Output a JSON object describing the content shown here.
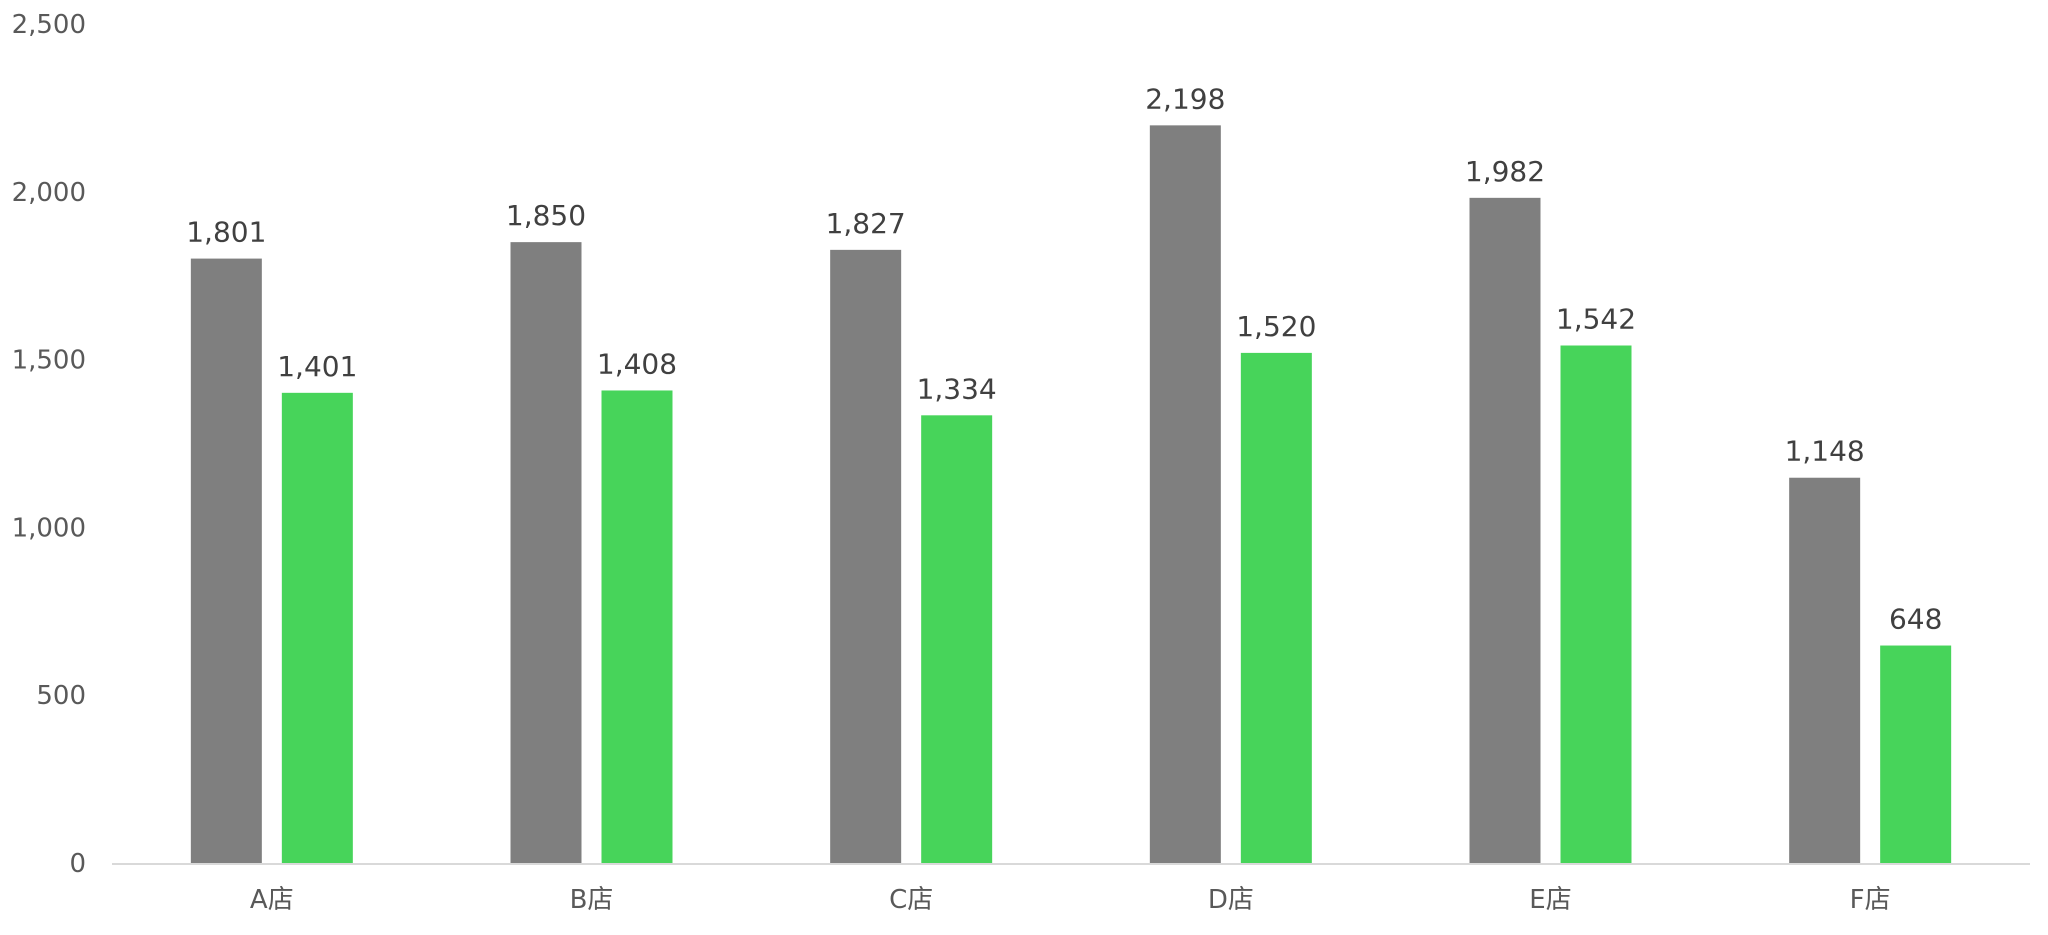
{
  "chart_data": {
    "type": "bar",
    "categories": [
      "A店",
      "B店",
      "C店",
      "D店",
      "E店",
      "F店"
    ],
    "series": [
      {
        "color": "#7f7f7f",
        "values": [
          1801,
          1850,
          1827,
          2198,
          1982,
          1148
        ]
      },
      {
        "color": "#47d45a",
        "values": [
          1401,
          1408,
          1334,
          1520,
          1542,
          648
        ]
      }
    ],
    "data_labels": [
      [
        "1,801",
        "1,850",
        "1,827",
        "2,198",
        "1,982",
        "1,148"
      ],
      [
        "1,401",
        "1,408",
        "1,334",
        "1,520",
        "1,542",
        "648"
      ]
    ],
    "y_ticks": [
      0,
      500,
      1000,
      1500,
      2000,
      2500
    ],
    "y_tick_labels": [
      "0",
      "500",
      "1,000",
      "1,500",
      "2,000",
      "2,500"
    ],
    "ylim": [
      0,
      2500
    ],
    "grid": false,
    "legend": "none"
  }
}
